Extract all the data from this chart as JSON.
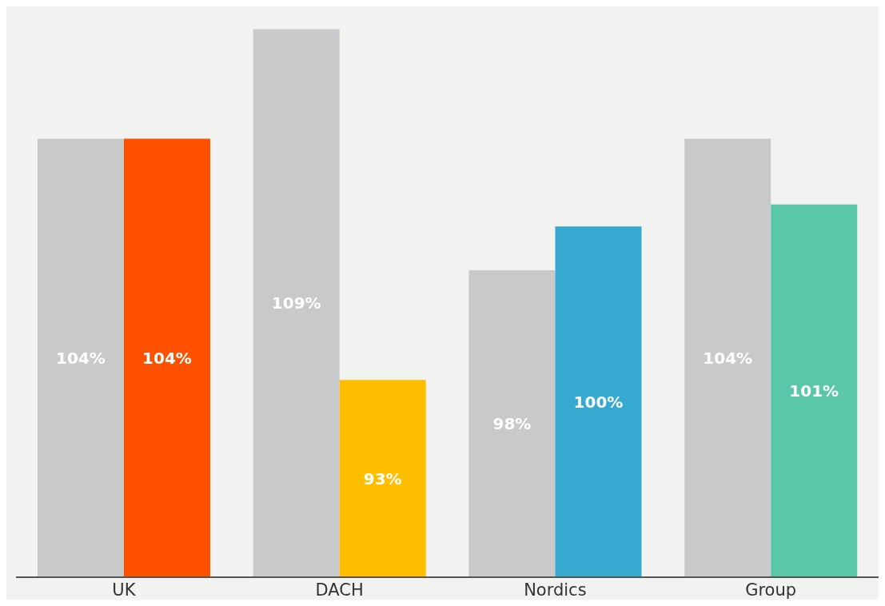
{
  "chart_data": {
    "type": "bar",
    "categories": [
      "UK",
      "DACH",
      "Nordics",
      "Group"
    ],
    "series": [
      {
        "color": "#c8c9cb",
        "values": [
          104,
          109,
          98,
          104
        ],
        "value_labels": [
          "104%",
          "109%",
          "98%",
          "104%"
        ]
      },
      {
        "colors": [
          "#ff5000",
          "#ffbe00",
          "#36a9d1",
          "#5bc7a9"
        ],
        "values": [
          104,
          93,
          100,
          101
        ],
        "value_labels": [
          "104%",
          "93%",
          "100%",
          "101%"
        ]
      }
    ],
    "ylim": [
      84,
      110
    ],
    "legend": false,
    "grid": false,
    "tick_labels": "x"
  }
}
